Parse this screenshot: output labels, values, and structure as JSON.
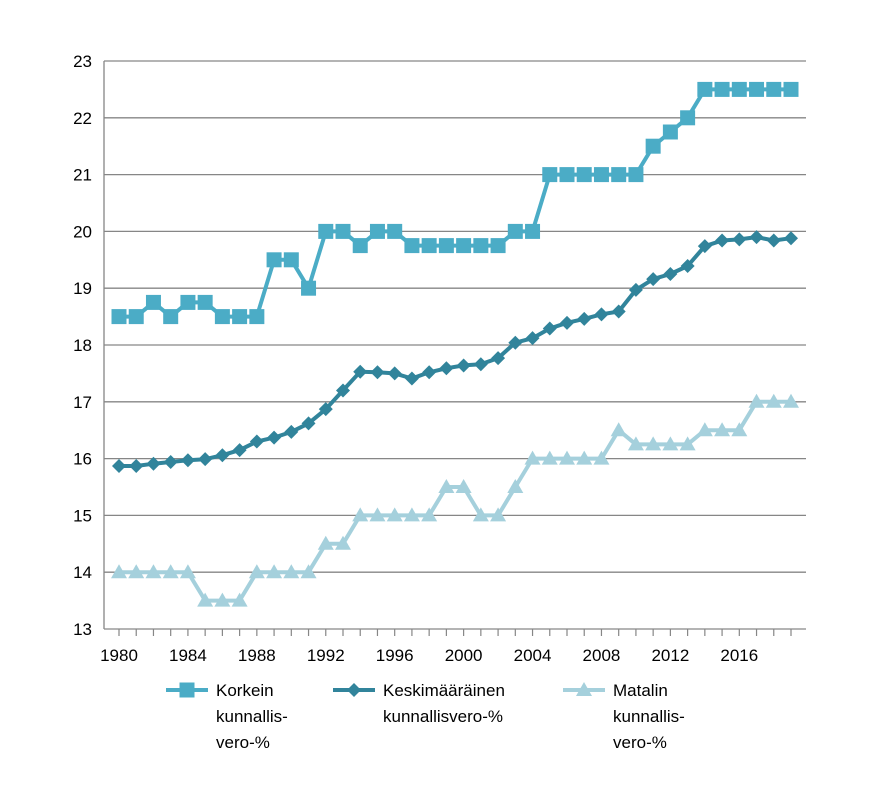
{
  "chart_data": {
    "type": "line",
    "title": "",
    "xlabel": "",
    "ylabel": "",
    "xlim": [
      1980,
      2019
    ],
    "ylim": [
      13,
      23
    ],
    "x_ticks": [
      "1980",
      "1984",
      "1988",
      "1992",
      "1996",
      "2000",
      "2004",
      "2008",
      "2012",
      "2016"
    ],
    "y_ticks": [
      "13",
      "14",
      "15",
      "16",
      "17",
      "18",
      "19",
      "20",
      "21",
      "22",
      "23"
    ],
    "grid": "horizontal",
    "legend_position": "bottom",
    "x": [
      1980,
      1981,
      1982,
      1983,
      1984,
      1985,
      1986,
      1987,
      1988,
      1989,
      1990,
      1991,
      1992,
      1993,
      1994,
      1995,
      1996,
      1997,
      1998,
      1999,
      2000,
      2001,
      2002,
      2003,
      2004,
      2005,
      2006,
      2007,
      2008,
      2009,
      2010,
      2011,
      2012,
      2013,
      2014,
      2015,
      2016,
      2017,
      2018,
      2019
    ],
    "series": [
      {
        "name": "Korkein kunnallis-vero-%",
        "legend_lines": [
          "Korkein",
          "kunnallis-",
          "vero-%"
        ],
        "color": "#4bacc6",
        "marker": "square",
        "values": [
          18.5,
          18.5,
          18.75,
          18.5,
          18.75,
          18.75,
          18.5,
          18.5,
          18.5,
          19.5,
          19.5,
          19.0,
          20.0,
          20.0,
          19.75,
          20.0,
          20.0,
          19.75,
          19.75,
          19.75,
          19.75,
          19.75,
          19.75,
          20.0,
          20.0,
          21.0,
          21.0,
          21.0,
          21.0,
          21.0,
          21.0,
          21.5,
          21.75,
          22.0,
          22.5,
          22.5,
          22.5,
          22.5,
          22.5,
          22.5
        ]
      },
      {
        "name": "Keskimääräinen kunnallisvero-%",
        "legend_lines": [
          "Keskimääräinen",
          "kunnallisvero-%"
        ],
        "color": "#31849b",
        "marker": "diamond",
        "values": [
          15.87,
          15.87,
          15.91,
          15.94,
          15.97,
          15.99,
          16.06,
          16.15,
          16.3,
          16.37,
          16.47,
          16.62,
          16.87,
          17.2,
          17.53,
          17.52,
          17.5,
          17.41,
          17.52,
          17.59,
          17.64,
          17.66,
          17.77,
          18.04,
          18.12,
          18.29,
          18.39,
          18.46,
          18.54,
          18.59,
          18.97,
          19.16,
          19.25,
          19.39,
          19.74,
          19.84,
          19.86,
          19.9,
          19.84,
          19.88
        ]
      },
      {
        "name": "Matalin kunnallis-vero-%",
        "legend_lines": [
          "Matalin",
          "kunnallis-",
          "vero-%"
        ],
        "color": "#a5d0dc",
        "marker": "triangle",
        "values": [
          14.0,
          14.0,
          14.0,
          14.0,
          14.0,
          13.5,
          13.5,
          13.5,
          14.0,
          14.0,
          14.0,
          14.0,
          14.5,
          14.5,
          15.0,
          15.0,
          15.0,
          15.0,
          15.0,
          15.5,
          15.5,
          15.0,
          15.0,
          15.5,
          16.0,
          16.0,
          16.0,
          16.0,
          16.0,
          16.5,
          16.25,
          16.25,
          16.25,
          16.25,
          16.5,
          16.5,
          16.5,
          17.0,
          17.0,
          17.0
        ]
      }
    ]
  }
}
